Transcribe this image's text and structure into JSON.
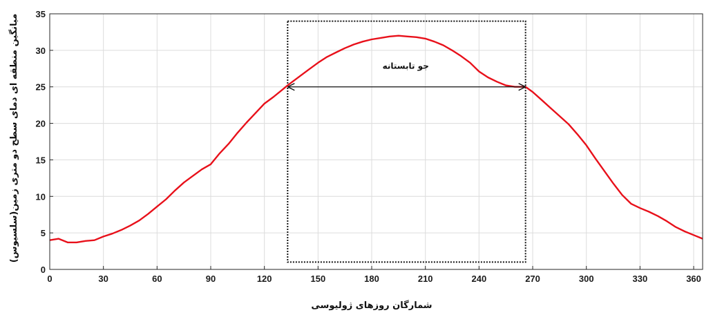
{
  "chart_data": {
    "type": "line",
    "title": "",
    "xlabel": "شمارگان روزهای ژولیوسی",
    "ylabel": "میانگین منطقه ای دمای سطح دو متری زمین(سلسیوس)",
    "xlim": [
      0,
      365
    ],
    "ylim": [
      0,
      35
    ],
    "xticks": [
      0,
      30,
      60,
      90,
      120,
      150,
      180,
      210,
      240,
      270,
      300,
      330,
      360
    ],
    "yticks": [
      0,
      5,
      10,
      15,
      20,
      25,
      30,
      35
    ],
    "grid": true,
    "series": [
      {
        "color": "#e8101a",
        "x": [
          0,
          5,
          10,
          15,
          20,
          25,
          30,
          35,
          40,
          45,
          50,
          55,
          60,
          65,
          70,
          75,
          80,
          85,
          90,
          95,
          100,
          105,
          110,
          115,
          120,
          125,
          130,
          133,
          140,
          145,
          150,
          155,
          160,
          165,
          170,
          175,
          180,
          185,
          190,
          195,
          200,
          205,
          210,
          215,
          220,
          225,
          230,
          235,
          240,
          245,
          250,
          255,
          260,
          266,
          270,
          275,
          280,
          285,
          290,
          295,
          300,
          305,
          310,
          315,
          320,
          325,
          330,
          335,
          340,
          345,
          350,
          355,
          360,
          365
        ],
        "y": [
          4.0,
          4.2,
          3.7,
          3.7,
          3.9,
          4.0,
          4.5,
          4.9,
          5.4,
          6.0,
          6.7,
          7.6,
          8.6,
          9.6,
          10.8,
          11.9,
          12.8,
          13.7,
          14.4,
          15.9,
          17.2,
          18.7,
          20.1,
          21.4,
          22.7,
          23.6,
          24.6,
          25.2,
          26.5,
          27.4,
          28.3,
          29.1,
          29.7,
          30.3,
          30.8,
          31.2,
          31.5,
          31.7,
          31.9,
          32.0,
          31.9,
          31.8,
          31.6,
          31.2,
          30.7,
          30.0,
          29.2,
          28.3,
          27.1,
          26.3,
          25.7,
          25.2,
          25.0,
          25.0,
          24.3,
          23.2,
          22.1,
          21.0,
          19.9,
          18.5,
          17.0,
          15.2,
          13.5,
          11.8,
          10.2,
          9.0,
          8.4,
          7.9,
          7.3,
          6.6,
          5.8,
          5.2,
          4.7,
          4.2
        ]
      }
    ],
    "annotations": [
      {
        "text": "جو تابستانه",
        "type": "double-arrow",
        "x_start": 133,
        "x_end": 266,
        "y": 25,
        "text_x": 199,
        "text_y": 27.5
      }
    ],
    "highlight_box": {
      "style": "dotted",
      "x_start": 133,
      "x_end": 266,
      "y_start": 1,
      "y_end": 34
    }
  }
}
